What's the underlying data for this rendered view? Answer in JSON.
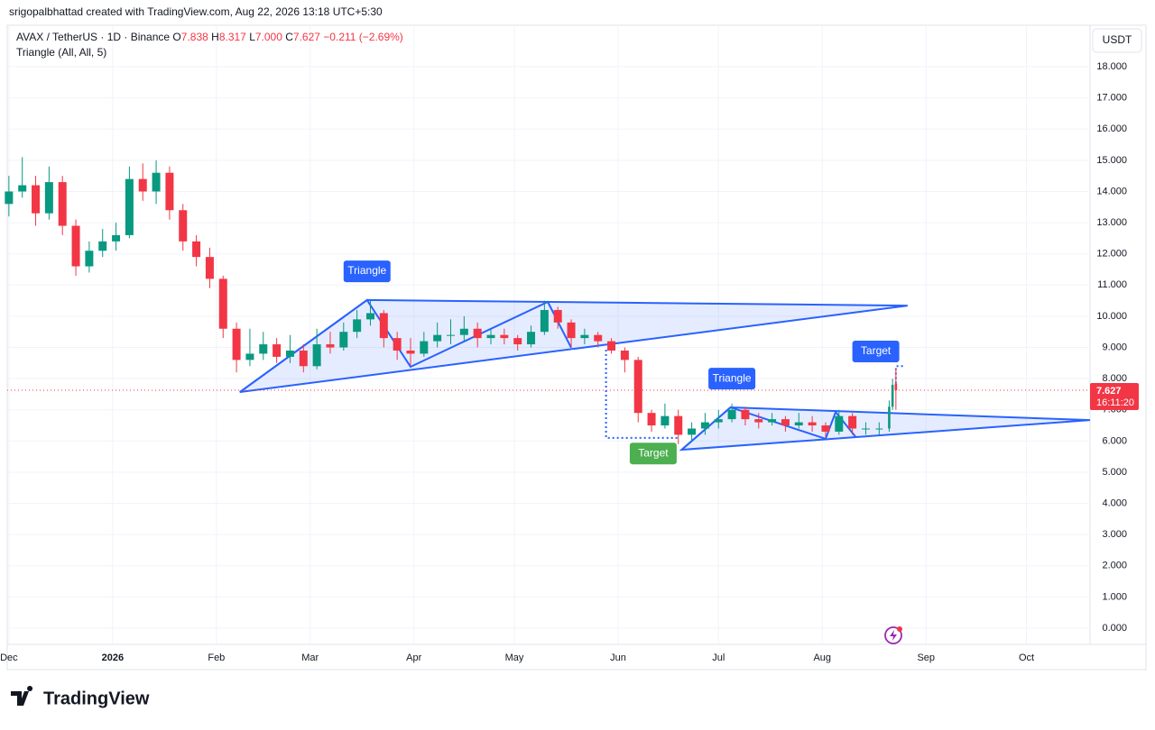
{
  "header": {
    "credit": "srigopalbhattad created with TradingView.com, Aug 22, 2026 13:18 UTC+5:30",
    "logo": "TradingView",
    "currency_button": "USDT"
  },
  "legend": {
    "symbol": "AVAX / TetherUS · 1D · Binance",
    "items": [
      {
        "key": "O",
        "value": "7.838"
      },
      {
        "key": "H",
        "value": "8.317"
      },
      {
        "key": "L",
        "value": "7.000"
      },
      {
        "key": "C",
        "value": "7.627"
      }
    ],
    "change": "−0.211 (−2.69%)",
    "indicator": "Triangle (All, All, 5)"
  },
  "chart_data": {
    "type": "candlestick",
    "up_color": "#089981",
    "down_color": "#f23645",
    "grid": true,
    "countdown": "16:11:20",
    "x": [
      0,
      4,
      8,
      12,
      16,
      20,
      24,
      28,
      32,
      36,
      40,
      44,
      48,
      52,
      56,
      60,
      64,
      68,
      72,
      76,
      80,
      84,
      88,
      92,
      96,
      100,
      104,
      108,
      112,
      116,
      120,
      124,
      128,
      132,
      136,
      140,
      144,
      148,
      152,
      156,
      160,
      164,
      168,
      172,
      176,
      180,
      184,
      188,
      192,
      196,
      200,
      204,
      208,
      212,
      216,
      220,
      224,
      228,
      232,
      236,
      240,
      244,
      248,
      252,
      256,
      260,
      263,
      264,
      265
    ],
    "ohlc": [
      [
        13.6,
        14.5,
        13.2,
        14.0
      ],
      [
        14.0,
        15.1,
        13.8,
        14.2
      ],
      [
        14.2,
        14.5,
        12.9,
        13.3
      ],
      [
        13.3,
        14.8,
        13.1,
        14.3
      ],
      [
        14.3,
        14.5,
        12.6,
        12.9
      ],
      [
        12.9,
        13.1,
        11.3,
        11.6
      ],
      [
        11.6,
        12.4,
        11.4,
        12.1
      ],
      [
        12.1,
        12.8,
        11.9,
        12.4
      ],
      [
        12.4,
        13.0,
        12.1,
        12.6
      ],
      [
        12.6,
        14.8,
        12.5,
        14.4
      ],
      [
        14.4,
        14.9,
        13.7,
        14.0
      ],
      [
        14.0,
        15.0,
        13.6,
        14.6
      ],
      [
        14.6,
        14.8,
        13.1,
        13.4
      ],
      [
        13.4,
        13.6,
        12.1,
        12.4
      ],
      [
        12.4,
        12.6,
        11.6,
        11.9
      ],
      [
        11.9,
        12.2,
        10.9,
        11.2
      ],
      [
        11.2,
        11.3,
        9.3,
        9.6
      ],
      [
        9.6,
        9.8,
        8.2,
        8.6
      ],
      [
        8.6,
        9.6,
        8.4,
        8.8
      ],
      [
        8.8,
        9.5,
        8.6,
        9.1
      ],
      [
        9.1,
        9.3,
        8.5,
        8.7
      ],
      [
        8.7,
        9.4,
        8.5,
        8.9
      ],
      [
        8.9,
        9.1,
        8.2,
        8.4
      ],
      [
        8.4,
        9.6,
        8.3,
        9.1
      ],
      [
        9.1,
        9.5,
        8.8,
        9.0
      ],
      [
        9.0,
        9.8,
        8.9,
        9.5
      ],
      [
        9.5,
        10.2,
        9.3,
        9.9
      ],
      [
        9.9,
        10.5,
        9.7,
        10.1
      ],
      [
        10.1,
        10.2,
        9.0,
        9.3
      ],
      [
        9.3,
        9.5,
        8.6,
        8.9
      ],
      [
        8.9,
        9.3,
        8.4,
        8.8
      ],
      [
        8.8,
        9.5,
        8.7,
        9.2
      ],
      [
        9.2,
        9.8,
        9.0,
        9.4
      ],
      [
        9.4,
        9.9,
        9.1,
        9.4
      ],
      [
        9.4,
        10.0,
        9.2,
        9.6
      ],
      [
        9.6,
        9.8,
        9.0,
        9.3
      ],
      [
        9.3,
        9.6,
        9.1,
        9.4
      ],
      [
        9.4,
        9.6,
        9.1,
        9.3
      ],
      [
        9.3,
        9.4,
        8.9,
        9.1
      ],
      [
        9.1,
        9.7,
        9.0,
        9.5
      ],
      [
        9.5,
        10.5,
        9.4,
        10.2
      ],
      [
        10.2,
        10.3,
        9.6,
        9.8
      ],
      [
        9.8,
        9.9,
        9.0,
        9.3
      ],
      [
        9.3,
        9.6,
        9.1,
        9.4
      ],
      [
        9.4,
        9.5,
        9.0,
        9.2
      ],
      [
        9.2,
        9.3,
        8.8,
        8.9
      ],
      [
        8.9,
        9.0,
        8.2,
        8.6
      ],
      [
        8.6,
        8.7,
        6.6,
        6.9
      ],
      [
        6.9,
        7.0,
        6.3,
        6.5
      ],
      [
        6.5,
        7.2,
        6.4,
        6.8
      ],
      [
        6.8,
        7.0,
        5.9,
        6.2
      ],
      [
        6.2,
        6.6,
        6.0,
        6.4
      ],
      [
        6.4,
        6.9,
        6.2,
        6.6
      ],
      [
        6.6,
        7.0,
        6.4,
        6.7
      ],
      [
        6.7,
        7.2,
        6.6,
        7.0
      ],
      [
        7.0,
        7.1,
        6.5,
        6.7
      ],
      [
        6.7,
        6.9,
        6.4,
        6.6
      ],
      [
        6.6,
        6.9,
        6.5,
        6.7
      ],
      [
        6.7,
        6.8,
        6.3,
        6.5
      ],
      [
        6.5,
        6.9,
        6.4,
        6.6
      ],
      [
        6.6,
        6.8,
        6.3,
        6.5
      ],
      [
        6.5,
        6.6,
        6.1,
        6.3
      ],
      [
        6.3,
        7.0,
        6.2,
        6.8
      ],
      [
        6.8,
        6.9,
        6.2,
        6.4
      ],
      [
        6.4,
        6.6,
        6.2,
        6.4
      ],
      [
        6.4,
        6.6,
        6.2,
        6.4
      ],
      [
        6.4,
        7.3,
        6.3,
        7.1
      ],
      [
        7.1,
        8.0,
        7.0,
        7.8
      ],
      [
        7.838,
        8.317,
        7.0,
        7.627
      ]
    ],
    "xlim": [
      -0.5,
      323
    ],
    "ylim": [
      -0.52,
      19.33
    ],
    "xticks": [
      {
        "value": 0,
        "label": "Dec"
      },
      {
        "value": 31,
        "label": "2026"
      },
      {
        "value": 62,
        "label": "Feb"
      },
      {
        "value": 90,
        "label": "Mar"
      },
      {
        "value": 121,
        "label": "Apr"
      },
      {
        "value": 151,
        "label": "May"
      },
      {
        "value": 182,
        "label": "Jun"
      },
      {
        "value": 212,
        "label": "Jul"
      },
      {
        "value": 243,
        "label": "Aug"
      },
      {
        "value": 274,
        "label": "Sep"
      },
      {
        "value": 304,
        "label": "Oct"
      }
    ],
    "yticks": [
      {
        "value": 0,
        "label": "0.000"
      },
      {
        "value": 1,
        "label": "1.000"
      },
      {
        "value": 2,
        "label": "2.000"
      },
      {
        "value": 3,
        "label": "3.000"
      },
      {
        "value": 4,
        "label": "4.000"
      },
      {
        "value": 5,
        "label": "5.000"
      },
      {
        "value": 6,
        "label": "6.000"
      },
      {
        "value": 7,
        "label": "7.000"
      },
      {
        "value": 8,
        "label": "8.000"
      },
      {
        "value": 9,
        "label": "9.000"
      },
      {
        "value": 10,
        "label": "10.000"
      },
      {
        "value": 11,
        "label": "11.000"
      },
      {
        "value": 12,
        "label": "12.000"
      },
      {
        "value": 13,
        "label": "13.000"
      },
      {
        "value": 14,
        "label": "14.000"
      },
      {
        "value": 15,
        "label": "15.000"
      },
      {
        "value": 16,
        "label": "16.000"
      },
      {
        "value": 17,
        "label": "17.000"
      },
      {
        "value": 18,
        "label": "18.000"
      }
    ],
    "drawings": [
      {
        "label": "Triangle",
        "color": "#2962ff",
        "label_at": [
          107,
          11.44
        ],
        "outline": [
          [
            69,
            7.57
          ],
          [
            107,
            10.52
          ],
          [
            268.5,
            10.34
          ]
        ],
        "zigzag": [
          [
            69,
            7.57
          ],
          [
            107,
            10.52
          ],
          [
            120,
            8.38
          ],
          [
            161,
            10.46
          ],
          [
            168,
            8.99
          ]
        ]
      },
      {
        "label": "Triangle",
        "color": "#2962ff",
        "label_at": [
          216,
          8.0
        ],
        "outline": [
          [
            201,
            5.72
          ],
          [
            215.6,
            7.08
          ],
          [
            323,
            6.67
          ]
        ],
        "zigzag": [
          [
            201,
            5.72
          ],
          [
            215.6,
            7.08
          ],
          [
            244,
            6.07
          ],
          [
            247,
            6.93
          ],
          [
            253,
            6.13
          ]
        ]
      },
      {
        "label": "Target",
        "color": "#4caf50",
        "label_at": [
          192.5,
          5.6
        ],
        "path": [
          [
            178.4,
            8.93
          ],
          [
            178.4,
            6.1
          ],
          [
            200.5,
            6.1
          ]
        ]
      },
      {
        "label": "Target",
        "color": "#2962ff",
        "label_at": [
          259,
          8.87
        ],
        "path": [
          [
            265,
            7.7
          ],
          [
            265,
            8.4
          ],
          [
            267.5,
            8.4
          ]
        ]
      }
    ]
  }
}
